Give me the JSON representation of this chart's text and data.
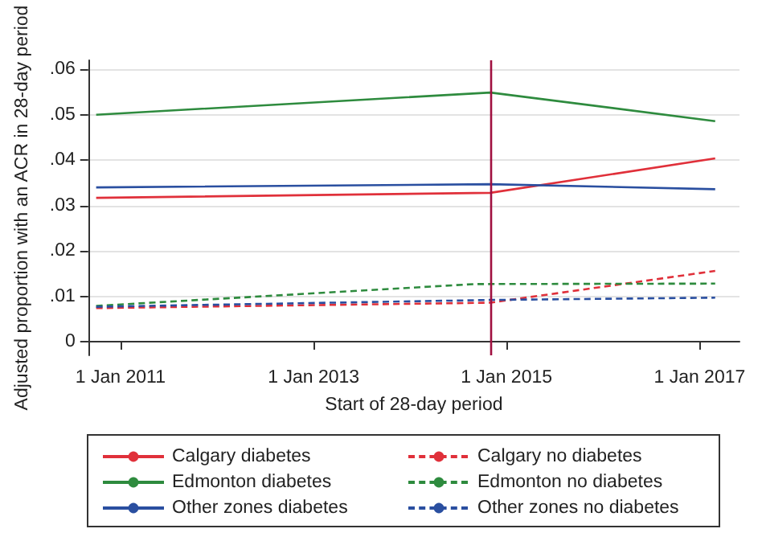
{
  "chart_data": {
    "type": "line",
    "xlabel": "Start of 28-day period",
    "ylabel": "Adjusted proportion with an ACR in 28-day period",
    "xlim": [
      "2010-09",
      "2017-06"
    ],
    "xticks": [
      {
        "value": "2011-01-01",
        "label": "1 Jan 2011"
      },
      {
        "value": "2013-01-01",
        "label": "1 Jan 2013"
      },
      {
        "value": "2015-01-01",
        "label": "1 Jan 2015"
      },
      {
        "value": "2017-01-01",
        "label": "1 Jan 2017"
      }
    ],
    "ylim": [
      -0.003,
      0.062
    ],
    "yticks": [
      0,
      {
        "value": 0.01,
        "label": ".01"
      },
      {
        "value": 0.02,
        "label": ".02"
      },
      {
        "value": 0.03,
        "label": ".03"
      },
      {
        "value": 0.04,
        "label": ".04"
      },
      {
        "value": 0.05,
        "label": ".05"
      },
      {
        "value": 0.06,
        "label": ".06"
      }
    ],
    "grid": "y",
    "legend": "bottom",
    "ref_lines": [
      {
        "axis": "x",
        "value": "2014-11",
        "color": "#a01040"
      }
    ],
    "series": [
      {
        "name": "Calgary diabetes",
        "color": "#e0303a",
        "line_style": "solid",
        "x": [
          "2010-10",
          "2014-11",
          "2017-03"
        ],
        "values": [
          0.0317,
          0.0328,
          0.0404
        ]
      },
      {
        "name": "Edmonton diabetes",
        "color": "#2e8b3e",
        "line_style": "solid",
        "x": [
          "2010-10",
          "2014-11",
          "2017-03"
        ],
        "values": [
          0.05,
          0.0549,
          0.0486
        ]
      },
      {
        "name": "Other zones diabetes",
        "color": "#2a4fa0",
        "line_style": "solid",
        "x": [
          "2010-10",
          "2014-11",
          "2017-03"
        ],
        "values": [
          0.034,
          0.0347,
          0.0336
        ]
      },
      {
        "name": "Calgary no diabetes",
        "color": "#e0303a",
        "line_style": "dashed",
        "x": [
          "2010-10",
          "2014-11",
          "2017-03"
        ],
        "values": [
          0.0074,
          0.0086,
          0.0156
        ]
      },
      {
        "name": "Edmonton no diabetes",
        "color": "#2e8b3e",
        "line_style": "dashed",
        "x": [
          "2010-10",
          "2014-09",
          "2017-03"
        ],
        "values": [
          0.0079,
          0.0127,
          0.0128
        ]
      },
      {
        "name": "Other zones no diabetes",
        "color": "#2a4fa0",
        "line_style": "dashed",
        "x": [
          "2010-10",
          "2014-11",
          "2017-03"
        ],
        "values": [
          0.0077,
          0.0092,
          0.0097
        ]
      }
    ]
  }
}
